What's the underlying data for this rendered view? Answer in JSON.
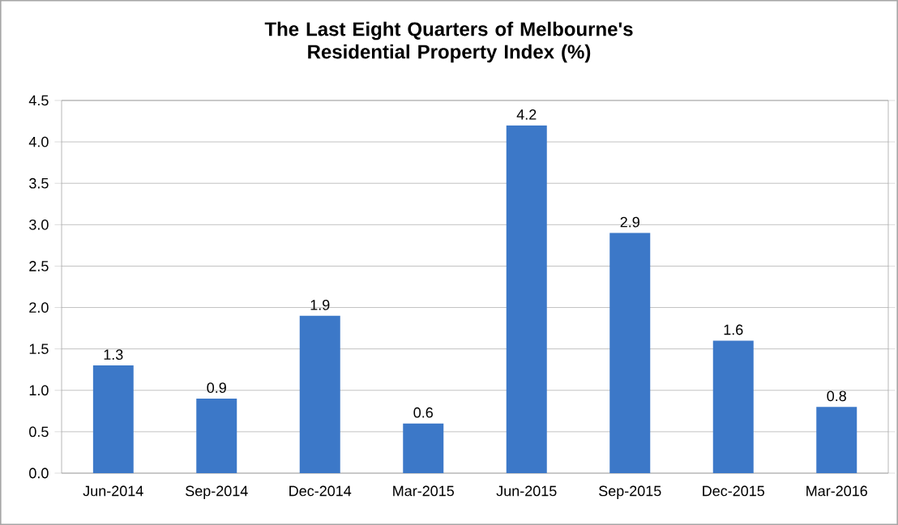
{
  "chart_data": {
    "type": "bar",
    "title": "The Last Eight Quarters of Melbourne's Residential Property Index (%)",
    "categories": [
      "Jun-2014",
      "Sep-2014",
      "Dec-2014",
      "Mar-2015",
      "Jun-2015",
      "Sep-2015",
      "Dec-2015",
      "Mar-2016"
    ],
    "values": [
      1.3,
      0.9,
      1.9,
      0.6,
      4.2,
      2.9,
      1.6,
      0.8
    ],
    "color": "#3c78c8",
    "ylim": [
      0,
      4.5
    ],
    "yticks": [
      {
        "value": 0,
        "label": "0.0"
      },
      {
        "value": 0.5,
        "label": "0.5"
      },
      {
        "value": 1,
        "label": "1.0"
      },
      {
        "value": 1.5,
        "label": "1.5"
      },
      {
        "value": 2,
        "label": "2.0"
      },
      {
        "value": 2.5,
        "label": "2.5"
      },
      {
        "value": 3,
        "label": "3.0"
      },
      {
        "value": 3.5,
        "label": "3.5"
      },
      {
        "value": 4,
        "label": "4.0"
      },
      {
        "value": 4.5,
        "label": "4.5"
      }
    ],
    "grid": "y",
    "data_labels": true
  }
}
